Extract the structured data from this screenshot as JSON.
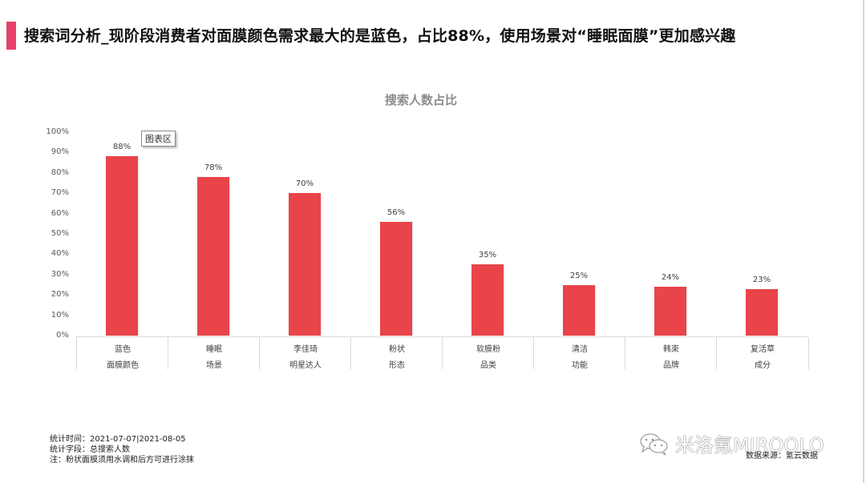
{
  "header": {
    "title": "搜索词分析_现阶段消费者对面膜颜色需求最大的是蓝色，占比88%，使用场景对“睡眠面膜”更加感兴趣",
    "accent_color": "#e8416b"
  },
  "tooltip": "图表区",
  "chart_data": {
    "type": "bar",
    "title": "搜索人数占比",
    "xlabel": "",
    "ylabel": "",
    "ylim": [
      0,
      100
    ],
    "grid": false,
    "legend": null,
    "y_ticks": [
      "100%",
      "90%",
      "80%",
      "70%",
      "60%",
      "50%",
      "40%",
      "30%",
      "20%",
      "10%",
      "0%"
    ],
    "categories": [
      "蓝色",
      "睡眠",
      "李佳琦",
      "粉状",
      "软膜粉",
      "清洁",
      "韩束",
      "复活草"
    ],
    "category_groups": [
      "面膜颜色",
      "场景",
      "明星达人",
      "形态",
      "品类",
      "功能",
      "品牌",
      "成分"
    ],
    "values": [
      88,
      78,
      70,
      56,
      35,
      25,
      24,
      23
    ],
    "value_labels": [
      "88%",
      "78%",
      "70%",
      "56%",
      "35%",
      "25%",
      "24%",
      "23%"
    ],
    "bar_color": "#e8444a"
  },
  "notes": {
    "line1": "统计时间：2021-07-07|2021-08-05",
    "line2": "统计字段：总搜索人数",
    "line3": "注：粉状面膜须用水调和后方可进行涂抹"
  },
  "watermark": "米洛氪MIROOLO",
  "source": "数据来源：氪云数据"
}
